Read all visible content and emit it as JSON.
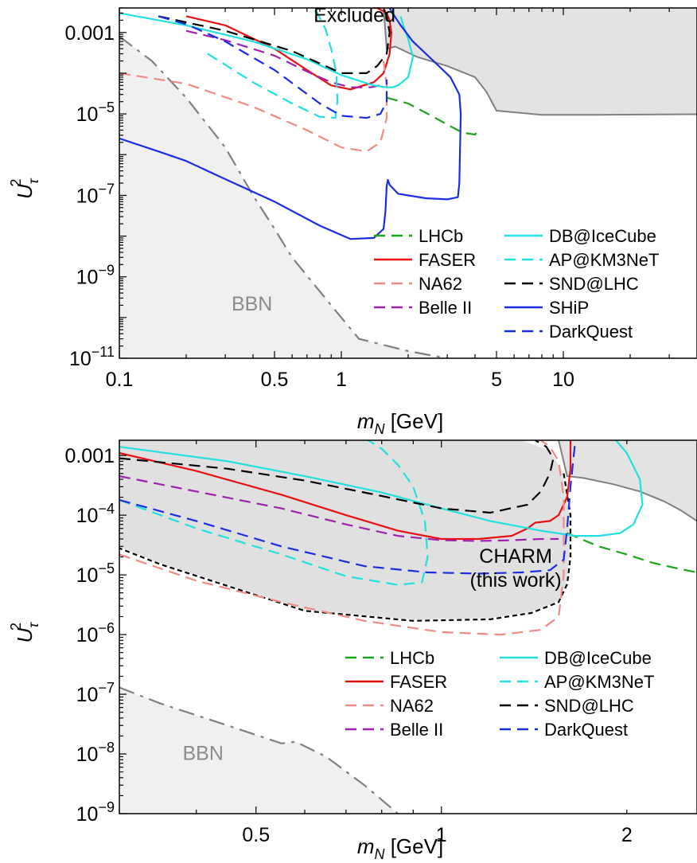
{
  "colors": {
    "LHCb": "#1aa51a",
    "FASER": "#e81010",
    "NA62": "#f08a84",
    "Belle II": "#a020b0",
    "DB@IceCube": "#22e0e0",
    "AP@KM3NeT": "#22e0e0",
    "SND@LHC": "#000000",
    "SHiP": "#1a2ee0",
    "DarkQuest": "#1a2ee0",
    "excluded_fill": "#e3e3e3",
    "excluded_edge": "#808080",
    "bbn_fill": "#f0f0f0",
    "bbn_edge": "#808080",
    "charm_fill": "#e0e0e0"
  },
  "chart_data": [
    {
      "type": "line",
      "panel": "top",
      "xlabel_var": "m",
      "xlabel_sub": "N",
      "xlabel_unit": "[GeV]",
      "ylabel_var": "U",
      "ylabel_sub": "τ",
      "ylabel_sup": "2",
      "x_scale": "log",
      "y_scale": "log",
      "xlim": [
        0.1,
        40
      ],
      "ylim": [
        1e-11,
        0.004
      ],
      "x_ticks": [
        {
          "v": 0.1,
          "label": "0.1"
        },
        {
          "v": 0.5,
          "label": "0.5"
        },
        {
          "v": 1,
          "label": "1"
        },
        {
          "v": 5,
          "label": "5"
        },
        {
          "v": 10,
          "label": "10"
        }
      ],
      "y_ticks": [
        {
          "v": 0.001,
          "label": "0.001",
          "base": "",
          "exp": ""
        },
        {
          "v": 1e-05,
          "label": "",
          "base": "10",
          "exp": "−5"
        },
        {
          "v": 1e-07,
          "label": "",
          "base": "10",
          "exp": "−7"
        },
        {
          "v": 1e-09,
          "label": "",
          "base": "10",
          "exp": "−9"
        },
        {
          "v": 1e-11,
          "label": "",
          "base": "10",
          "exp": "−11"
        }
      ],
      "regions": [
        {
          "name": "Excluded",
          "label": "Excluded",
          "label_at": [
            0.75,
            0.0018
          ],
          "label_color": "#000000",
          "points": [
            [
              1.55,
              0.004
            ],
            [
              1.6,
              0.0004
            ],
            [
              1.75,
              0.00045
            ],
            [
              2.2,
              0.00025
            ],
            [
              3.0,
              0.00015
            ],
            [
              4.0,
              8e-05
            ],
            [
              4.5,
              3.5e-05
            ],
            [
              5,
              1.2e-05
            ],
            [
              8,
              9.5e-06
            ],
            [
              15,
              9.5e-06
            ],
            [
              40,
              9.8e-06
            ],
            [
              40,
              0.004
            ]
          ]
        },
        {
          "name": "BBN",
          "label": "BBN",
          "label_at": [
            0.32,
            1.5e-10
          ],
          "label_color": "#8c8c8c",
          "points": [
            [
              0.1,
              1e-11
            ],
            [
              0.1,
              0.0008
            ],
            [
              0.14,
              0.0002
            ],
            [
              0.2,
              2.5e-05
            ],
            [
              0.3,
              1.5e-06
            ],
            [
              0.4,
              1e-07
            ],
            [
              0.5,
              1.5e-08
            ],
            [
              0.6,
              3e-09
            ],
            [
              0.9,
              2e-10
            ],
            [
              1.2,
              3e-11
            ],
            [
              2.0,
              1.5e-11
            ],
            [
              3,
              1e-11
            ]
          ]
        }
      ],
      "series": [
        {
          "name": "LHCb",
          "dash": "14 8",
          "x": [
            1.6,
            2.0,
            2.5,
            3.0,
            3.5,
            4.0,
            4.2
          ],
          "y": [
            2.5e-05,
            1.8e-05,
            9.5e-06,
            5.5e-06,
            3.5e-06,
            3.1e-06,
            4.5e-06
          ]
        },
        {
          "name": "FASER",
          "dash": "",
          "x": [
            0.2,
            0.3,
            0.5,
            0.7,
            0.9,
            1.1,
            1.4,
            1.55,
            1.65,
            1.68,
            1.65,
            1.6,
            1.45,
            1.35
          ],
          "y": [
            0.0025,
            0.0015,
            0.0004,
            0.00012,
            5e-05,
            4e-05,
            6e-05,
            0.0001,
            0.0003,
            0.001,
            0.002,
            0.003,
            0.004,
            0.004
          ]
        },
        {
          "name": "NA62",
          "dash": "14 8",
          "x": [
            0.1,
            0.2,
            0.4,
            0.7,
            1.0,
            1.3,
            1.5,
            1.6,
            1.6,
            1.55
          ],
          "y": [
            0.0001,
            5.5e-05,
            1.5e-05,
            4e-06,
            1.5e-06,
            1.2e-06,
            2e-06,
            8e-06,
            5e-05,
            0.0002
          ]
        },
        {
          "name": "Belle II",
          "dash": "14 8",
          "x": [
            0.2,
            0.3,
            0.5,
            0.7,
            0.9,
            1.1,
            1.35,
            1.5
          ],
          "y": [
            0.0011,
            0.00065,
            0.00027,
            0.00011,
            6e-05,
            4.5e-05,
            4.5e-05,
            5e-05
          ]
        },
        {
          "name": "DB@IceCube",
          "dash": "",
          "x": [
            0.1,
            0.2,
            0.4,
            0.7,
            1.0,
            1.4,
            1.6,
            1.7,
            1.8,
            2.0,
            2.1,
            2.0,
            1.9,
            1.85
          ],
          "y": [
            0.003,
            0.0015,
            0.0006,
            0.00022,
            9e-05,
            5e-05,
            4.5e-05,
            4.5e-05,
            5e-05,
            8e-05,
            0.00025,
            0.0007,
            0.0015,
            0.0025
          ]
        },
        {
          "name": "AP@KM3NeT",
          "dash": "14 8",
          "x": [
            0.25,
            0.4,
            0.6,
            0.8,
            0.94,
            0.96,
            0.95,
            0.9,
            0.85,
            0.78,
            0.74
          ],
          "y": [
            0.0003,
            6e-05,
            1.8e-05,
            8.5e-06,
            8e-06,
            2e-05,
            0.0001,
            0.0004,
            0.0012,
            0.003,
            0.004
          ]
        },
        {
          "name": "SND@LHC",
          "dash": "14 8",
          "x": [
            0.15,
            0.3,
            0.6,
            1.0,
            1.3,
            1.45,
            1.6,
            1.65,
            1.6,
            1.55
          ],
          "y": [
            0.0025,
            0.0011,
            0.00035,
            0.0001,
            0.0001,
            0.00015,
            0.0003,
            0.001,
            0.0025,
            0.004
          ]
        },
        {
          "name": "SHiP",
          "dash": "",
          "x": [
            0.1,
            0.15,
            0.2,
            0.3,
            0.5,
            0.8,
            1.1,
            1.4,
            1.55,
            1.58,
            1.6,
            1.62,
            1.65,
            1.8,
            2.4,
            3.0,
            3.35,
            3.4,
            3.45,
            3.4,
            3.1,
            2.6,
            2.1,
            1.85,
            1.7,
            1.65
          ],
          "y": [
            2.5e-06,
            1.2e-06,
            7e-07,
            2.5e-07,
            7e-08,
            1.8e-08,
            8.5e-09,
            9e-09,
            1.5e-08,
            4e-08,
            1.7e-07,
            2.4e-07,
            1.8e-07,
            1.1e-07,
            8.5e-08,
            8e-08,
            9e-08,
            2e-07,
            1e-05,
            3e-05,
            8e-05,
            0.0002,
            0.0006,
            0.0015,
            0.003,
            0.004
          ]
        },
        {
          "name": "DarkQuest",
          "dash": "14 8",
          "x": [
            0.15,
            0.2,
            0.3,
            0.5,
            0.8,
            1.0,
            1.3,
            1.5,
            1.6,
            1.6
          ],
          "y": [
            0.0025,
            0.0016,
            0.0006,
            0.00012,
            1.8e-05,
            9e-06,
            8e-06,
            1e-05,
            2e-05,
            7e-05
          ]
        }
      ],
      "legend": [
        {
          "name": "LHCb",
          "col": 0,
          "row": 0
        },
        {
          "name": "FASER",
          "col": 0,
          "row": 1
        },
        {
          "name": "NA62",
          "col": 0,
          "row": 2
        },
        {
          "name": "Belle II",
          "col": 0,
          "row": 3
        },
        {
          "name": "DB@IceCube",
          "col": 1,
          "row": 0
        },
        {
          "name": "AP@KM3NeT",
          "col": 1,
          "row": 1
        },
        {
          "name": "SND@LHC",
          "col": 1,
          "row": 2
        },
        {
          "name": "SHiP",
          "col": 1,
          "row": 3
        },
        {
          "name": "DarkQuest",
          "col": 1,
          "row": 4
        }
      ],
      "legend_placement": "bottom-right"
    },
    {
      "type": "line",
      "panel": "bottom",
      "xlabel_var": "m",
      "xlabel_sub": "N",
      "xlabel_unit": "[GeV]",
      "ylabel_var": "U",
      "ylabel_sub": "τ",
      "ylabel_sup": "2",
      "x_scale": "log",
      "y_scale": "log",
      "xlim": [
        0.3,
        2.6
      ],
      "ylim": [
        1e-09,
        0.0018
      ],
      "x_ticks": [
        {
          "v": 0.5,
          "label": "0.5"
        },
        {
          "v": 1,
          "label": "1"
        },
        {
          "v": 2,
          "label": "2"
        }
      ],
      "y_ticks": [
        {
          "v": 0.001,
          "label": "0.001",
          "base": "",
          "exp": ""
        },
        {
          "v": 0.0001,
          "label": "",
          "base": "10",
          "exp": "−4"
        },
        {
          "v": 1e-05,
          "label": "",
          "base": "10",
          "exp": "−5"
        },
        {
          "v": 1e-06,
          "label": "",
          "base": "10",
          "exp": "−6"
        },
        {
          "v": 1e-07,
          "label": "",
          "base": "10",
          "exp": "−7"
        },
        {
          "v": 1e-08,
          "label": "",
          "base": "10",
          "exp": "−8"
        },
        {
          "v": 1e-09,
          "label": "",
          "base": "10",
          "exp": "−9"
        }
      ],
      "regions": [
        {
          "name": "CHARM",
          "label": "CHARM",
          "label2": "(this work)",
          "label_at": [
            1.32,
            1.6e-05
          ],
          "label_color": "#000000",
          "points": [
            [
              0.3,
              0.0018
            ],
            [
              1.35,
              0.0018
            ],
            [
              1.5,
              0.0012
            ],
            [
              1.58,
              0.0005
            ],
            [
              1.62,
              0.0001
            ],
            [
              1.62,
              2e-05
            ],
            [
              1.6,
              7e-06
            ],
            [
              1.55,
              3.5e-06
            ],
            [
              1.4,
              2.3e-06
            ],
            [
              1.2,
              1.8e-06
            ],
            [
              0.9,
              1.7e-06
            ],
            [
              0.6,
              2.5e-06
            ],
            [
              0.45,
              6.5e-06
            ],
            [
              0.35,
              1.5e-05
            ],
            [
              0.3,
              2.8e-05
            ]
          ]
        },
        {
          "name": "Excluded",
          "label": "",
          "label_at": [
            2.2,
            0.001
          ],
          "label_color": "#000000",
          "points": [
            [
              1.55,
              0.0018
            ],
            [
              1.6,
              0.00045
            ],
            [
              1.7,
              0.00042
            ],
            [
              1.9,
              0.00033
            ],
            [
              2.1,
              0.00025
            ],
            [
              2.3,
              0.00017
            ],
            [
              2.45,
              0.00012
            ],
            [
              2.6,
              8e-05
            ],
            [
              2.6,
              0.0018
            ]
          ]
        },
        {
          "name": "BBN",
          "label": "BBN",
          "label_at": [
            0.38,
            8e-09
          ],
          "label_color": "#8c8c8c",
          "points": [
            [
              0.3,
              1e-09
            ],
            [
              0.3,
              1.3e-07
            ],
            [
              0.35,
              7e-08
            ],
            [
              0.45,
              3e-08
            ],
            [
              0.55,
              1.5e-08
            ],
            [
              0.58,
              1.6e-08
            ],
            [
              0.65,
              9e-09
            ],
            [
              0.75,
              3e-09
            ],
            [
              0.85,
              1e-09
            ]
          ]
        }
      ],
      "series": [
        {
          "name": "LHCb",
          "dash": "14 8",
          "x": [
            1.6,
            1.8,
            2.0,
            2.2,
            2.4,
            2.6
          ],
          "y": [
            5e-05,
            3e-05,
            2.2e-05,
            1.6e-05,
            1.3e-05,
            1.1e-05
          ]
        },
        {
          "name": "FASER",
          "dash": "",
          "x": [
            0.3,
            0.4,
            0.55,
            0.7,
            0.85,
            1.0,
            1.15,
            1.3,
            1.38,
            1.42,
            1.5,
            1.55,
            1.6,
            1.62,
            1.62
          ],
          "y": [
            0.0011,
            0.00055,
            0.00022,
            0.0001,
            5.5e-05,
            4e-05,
            4e-05,
            4.5e-05,
            6e-05,
            7.5e-05,
            8e-05,
            0.0001,
            0.0002,
            0.0006,
            0.0018
          ]
        },
        {
          "name": "NA62",
          "dash": "14 8",
          "x": [
            0.3,
            0.4,
            0.55,
            0.75,
            1.0,
            1.25,
            1.45,
            1.55,
            1.58,
            1.58,
            1.55,
            1.5,
            1.45
          ],
          "y": [
            2.2e-05,
            8e-06,
            3.5e-06,
            1.7e-06,
            1.1e-06,
            1e-06,
            1.2e-06,
            2e-06,
            1e-05,
            0.0002,
            0.0008,
            0.0014,
            0.0018
          ]
        },
        {
          "name": "Belle II",
          "dash": "14 8",
          "x": [
            0.3,
            0.4,
            0.55,
            0.7,
            0.85,
            1.0,
            1.15,
            1.3,
            1.45,
            1.55
          ],
          "y": [
            0.00045,
            0.00025,
            0.00013,
            7e-05,
            4.5e-05,
            3.8e-05,
            3.7e-05,
            3.8e-05,
            4e-05,
            4e-05
          ]
        },
        {
          "name": "DB@IceCube",
          "dash": "",
          "x": [
            0.3,
            0.45,
            0.6,
            0.8,
            1.0,
            1.2,
            1.45,
            1.65,
            1.8,
            1.95,
            2.05,
            2.12,
            2.1,
            2.0,
            1.92
          ],
          "y": [
            0.0014,
            0.0008,
            0.00045,
            0.00024,
            0.00013,
            8e-05,
            5.5e-05,
            4.5e-05,
            4.5e-05,
            5e-05,
            7e-05,
            0.00015,
            0.0004,
            0.0011,
            0.0018
          ]
        },
        {
          "name": "AP@KM3NeT",
          "dash": "14 8",
          "x": [
            0.3,
            0.4,
            0.55,
            0.7,
            0.85,
            0.93,
            0.95,
            0.94,
            0.9,
            0.85,
            0.8,
            0.76
          ],
          "y": [
            0.00018,
            6e-05,
            2.2e-05,
            9.5e-06,
            6.8e-06,
            7.5e-06,
            2e-05,
            8e-05,
            0.0003,
            0.0007,
            0.0013,
            0.0018
          ]
        },
        {
          "name": "SND@LHC",
          "dash": "14 8",
          "x": [
            0.3,
            0.45,
            0.6,
            0.8,
            1.0,
            1.2,
            1.38,
            1.45,
            1.5,
            1.52,
            1.48,
            1.42
          ],
          "y": [
            0.0009,
            0.0006,
            0.00038,
            0.00021,
            0.00013,
            0.00011,
            0.00015,
            0.00025,
            0.0005,
            0.0009,
            0.0014,
            0.0018
          ]
        },
        {
          "name": "DarkQuest",
          "dash": "14 8",
          "x": [
            0.3,
            0.4,
            0.55,
            0.75,
            0.95,
            1.15,
            1.35,
            1.5,
            1.58,
            1.6,
            1.62,
            1.65
          ],
          "y": [
            0.00018,
            8e-05,
            3e-05,
            1.4e-05,
            1.1e-05,
            1.05e-05,
            1.1e-05,
            1.2e-05,
            1.8e-05,
            6e-05,
            0.0003,
            0.0018
          ]
        }
      ],
      "legend": [
        {
          "name": "LHCb",
          "col": 0,
          "row": 0
        },
        {
          "name": "FASER",
          "col": 0,
          "row": 1
        },
        {
          "name": "NA62",
          "col": 0,
          "row": 2
        },
        {
          "name": "Belle II",
          "col": 0,
          "row": 3
        },
        {
          "name": "DB@IceCube",
          "col": 1,
          "row": 0
        },
        {
          "name": "AP@KM3NeT",
          "col": 1,
          "row": 1
        },
        {
          "name": "SND@LHC",
          "col": 1,
          "row": 2
        },
        {
          "name": "DarkQuest",
          "col": 1,
          "row": 3
        }
      ],
      "legend_placement": "bottom-right"
    }
  ]
}
